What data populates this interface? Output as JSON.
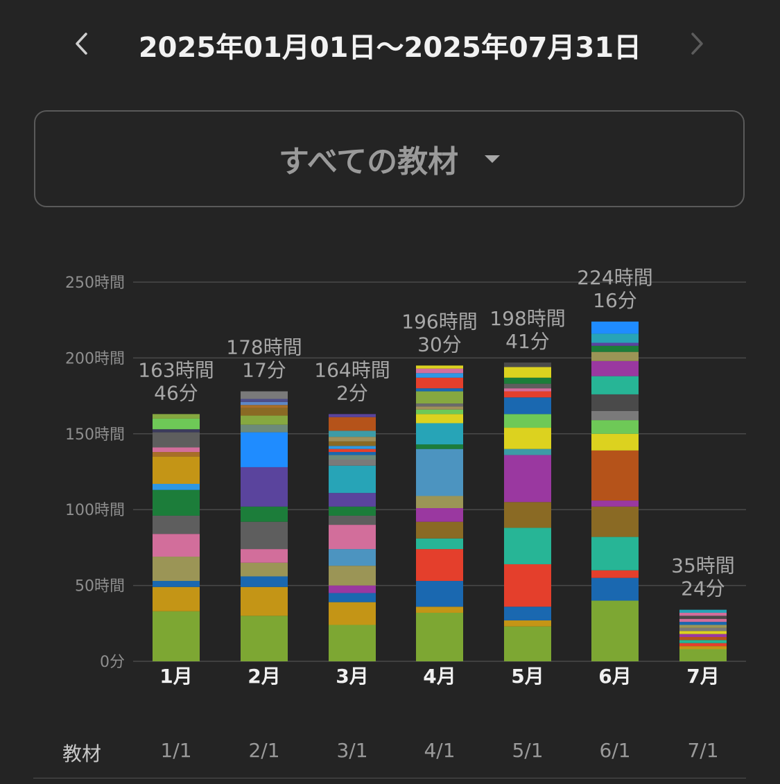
{
  "header": {
    "date_range": "2025年01月01日～2025年07月31日"
  },
  "selector": {
    "label": "すべての教材"
  },
  "footer": {
    "label": "教材",
    "dates": [
      "1/1",
      "2/1",
      "3/1",
      "4/1",
      "5/1",
      "6/1",
      "7/1"
    ]
  },
  "chart_data": {
    "type": "bar",
    "stacked": true,
    "categories": [
      "1月",
      "2月",
      "3月",
      "4月",
      "5月",
      "6月",
      "7月"
    ],
    "y_ticks": [
      "0分",
      "50時間",
      "100時間",
      "150時間",
      "200時間",
      "250時間"
    ],
    "ylim": [
      0,
      250
    ],
    "grid": true,
    "totals": [
      [
        "163時間",
        "46分"
      ],
      [
        "178時間",
        "17分"
      ],
      [
        "164時間",
        "2分"
      ],
      [
        "196時間",
        "30分"
      ],
      [
        "198時間",
        "41分"
      ],
      [
        "224時間",
        "16分"
      ],
      [
        "35時間",
        "24分"
      ]
    ],
    "stacks": [
      [
        {
          "value": 33,
          "color": "#7da733"
        },
        {
          "value": 16,
          "color": "#c49516"
        },
        {
          "value": 4,
          "color": "#1a68b0"
        },
        {
          "value": 16,
          "color": "#9b9556"
        },
        {
          "value": 15,
          "color": "#d26e9b"
        },
        {
          "value": 12,
          "color": "#5e5e5e"
        },
        {
          "value": 17,
          "color": "#1c7d3a"
        },
        {
          "value": 4,
          "color": "#2e97e3"
        },
        {
          "value": 18,
          "color": "#c49516"
        },
        {
          "value": 3,
          "color": "#a86e28"
        },
        {
          "value": 3,
          "color": "#d26e9b"
        },
        {
          "value": 10,
          "color": "#5e5e5e"
        },
        {
          "value": 2,
          "color": "#3b3b5c"
        },
        {
          "value": 7,
          "color": "#6ec957"
        },
        {
          "value": 3,
          "color": "#86a840"
        }
      ],
      [
        {
          "value": 30,
          "color": "#7da733"
        },
        {
          "value": 19,
          "color": "#c49516"
        },
        {
          "value": 7,
          "color": "#1a68b0"
        },
        {
          "value": 9,
          "color": "#9b9556"
        },
        {
          "value": 9,
          "color": "#d26e9b"
        },
        {
          "value": 18,
          "color": "#5e5e5e"
        },
        {
          "value": 10,
          "color": "#1c7d3a"
        },
        {
          "value": 26,
          "color": "#5a449d"
        },
        {
          "value": 23,
          "color": "#1f8cff"
        },
        {
          "value": 5,
          "color": "#6c8a7a"
        },
        {
          "value": 6,
          "color": "#86a840"
        },
        {
          "value": 5,
          "color": "#8a6a24"
        },
        {
          "value": 2,
          "color": "#a86e28"
        },
        {
          "value": 2,
          "color": "#5e87c5"
        },
        {
          "value": 2,
          "color": "#4e4e8a"
        },
        {
          "value": 5,
          "color": "#7a7a7a"
        }
      ],
      [
        {
          "value": 24,
          "color": "#7da733"
        },
        {
          "value": 15,
          "color": "#c49516"
        },
        {
          "value": 6,
          "color": "#1a68b0"
        },
        {
          "value": 5,
          "color": "#9a38a0"
        },
        {
          "value": 13,
          "color": "#9b9556"
        },
        {
          "value": 11,
          "color": "#4c94c0"
        },
        {
          "value": 16,
          "color": "#d26e9b"
        },
        {
          "value": 6,
          "color": "#5e5e5e"
        },
        {
          "value": 6,
          "color": "#1c7d3a"
        },
        {
          "value": 9,
          "color": "#5a449d"
        },
        {
          "value": 18,
          "color": "#27a4b7"
        },
        {
          "value": 4,
          "color": "#7a7a7a"
        },
        {
          "value": 3,
          "color": "#6c8a7a"
        },
        {
          "value": 2,
          "color": "#1a68b0"
        },
        {
          "value": 2,
          "color": "#e43f2c"
        },
        {
          "value": 2,
          "color": "#2e97e3"
        },
        {
          "value": 3,
          "color": "#8a6a24"
        },
        {
          "value": 3,
          "color": "#a0905a"
        },
        {
          "value": 4,
          "color": "#3d9ba6"
        },
        {
          "value": 9,
          "color": "#b5531a"
        },
        {
          "value": 2,
          "color": "#5a449d"
        }
      ],
      [
        {
          "value": 32,
          "color": "#7da733"
        },
        {
          "value": 4,
          "color": "#c49516"
        },
        {
          "value": 17,
          "color": "#1a68b0"
        },
        {
          "value": 21,
          "color": "#e43f2c"
        },
        {
          "value": 7,
          "color": "#27b596"
        },
        {
          "value": 11,
          "color": "#8a6a24"
        },
        {
          "value": 9,
          "color": "#9a38a0"
        },
        {
          "value": 8,
          "color": "#9b9556"
        },
        {
          "value": 31,
          "color": "#4c94c0"
        },
        {
          "value": 3,
          "color": "#1c7d3a"
        },
        {
          "value": 14,
          "color": "#27a4b7"
        },
        {
          "value": 6,
          "color": "#dcd21f"
        },
        {
          "value": 3,
          "color": "#6ec957"
        },
        {
          "value": 2,
          "color": "#a0905a"
        },
        {
          "value": 2,
          "color": "#6a6a6a"
        },
        {
          "value": 8,
          "color": "#86a840"
        },
        {
          "value": 2,
          "color": "#1a68b0"
        },
        {
          "value": 7,
          "color": "#e43f2c"
        },
        {
          "value": 3,
          "color": "#2e97e3"
        },
        {
          "value": 3,
          "color": "#d26e9b"
        },
        {
          "value": 2,
          "color": "#dcd21f"
        }
      ],
      [
        {
          "value": 23,
          "color": "#7da733"
        },
        {
          "value": 4,
          "color": "#c49516"
        },
        {
          "value": 9,
          "color": "#1a68b0"
        },
        {
          "value": 28,
          "color": "#e43f2c"
        },
        {
          "value": 24,
          "color": "#27b596"
        },
        {
          "value": 17,
          "color": "#8a6a24"
        },
        {
          "value": 31,
          "color": "#9a38a0"
        },
        {
          "value": 4,
          "color": "#3d9ba6"
        },
        {
          "value": 14,
          "color": "#dcd21f"
        },
        {
          "value": 9,
          "color": "#6ec957"
        },
        {
          "value": 11,
          "color": "#1a68b0"
        },
        {
          "value": 4,
          "color": "#e43f2c"
        },
        {
          "value": 2,
          "color": "#d26e9b"
        },
        {
          "value": 3,
          "color": "#5e5e5e"
        },
        {
          "value": 4,
          "color": "#1c7d3a"
        },
        {
          "value": 7,
          "color": "#dcd21f"
        },
        {
          "value": 3,
          "color": "#4a4a4a"
        }
      ],
      [
        {
          "value": 40,
          "color": "#7da733"
        },
        {
          "value": 15,
          "color": "#1a68b0"
        },
        {
          "value": 5,
          "color": "#e43f2c"
        },
        {
          "value": 22,
          "color": "#27b596"
        },
        {
          "value": 20,
          "color": "#8a6a24"
        },
        {
          "value": 4,
          "color": "#9a38a0"
        },
        {
          "value": 33,
          "color": "#b5531a"
        },
        {
          "value": 11,
          "color": "#dcd21f"
        },
        {
          "value": 9,
          "color": "#6ec957"
        },
        {
          "value": 6,
          "color": "#7a7a7a"
        },
        {
          "value": 11,
          "color": "#4a4a4a"
        },
        {
          "value": 12,
          "color": "#27b596"
        },
        {
          "value": 10,
          "color": "#9a38a0"
        },
        {
          "value": 6,
          "color": "#9b9556"
        },
        {
          "value": 4,
          "color": "#1c7d3a"
        },
        {
          "value": 2,
          "color": "#5a449d"
        },
        {
          "value": 6,
          "color": "#27a4b7"
        },
        {
          "value": 8,
          "color": "#1f8cff"
        }
      ],
      [
        {
          "value": 8,
          "color": "#7da733"
        },
        {
          "value": 2,
          "color": "#c49516"
        },
        {
          "value": 2,
          "color": "#e43f2c"
        },
        {
          "value": 2,
          "color": "#27b596"
        },
        {
          "value": 2,
          "color": "#b5531a"
        },
        {
          "value": 2,
          "color": "#9a38a0"
        },
        {
          "value": 2,
          "color": "#dcd21f"
        },
        {
          "value": 2,
          "color": "#7a7a7a"
        },
        {
          "value": 2,
          "color": "#9b9556"
        },
        {
          "value": 2,
          "color": "#1a68b0"
        },
        {
          "value": 2,
          "color": "#d26e9b"
        },
        {
          "value": 2,
          "color": "#4a4a4a"
        },
        {
          "value": 2,
          "color": "#d26e9b"
        },
        {
          "value": 2,
          "color": "#27a4b7"
        }
      ]
    ]
  }
}
